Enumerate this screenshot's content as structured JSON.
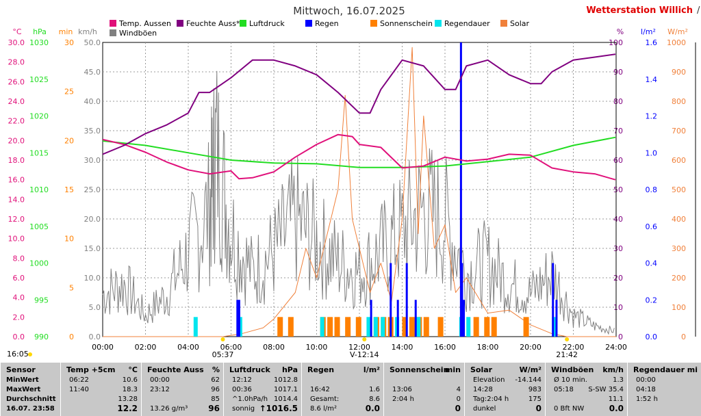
{
  "header": {
    "title": "Mittwoch, 16.07.2025",
    "station": "Wetterstation Willich"
  },
  "legend": [
    {
      "label": "Temp. Aussen",
      "color": "#e0107a"
    },
    {
      "label": "Feuchte Auss*",
      "color": "#800080"
    },
    {
      "label": "Luftdruck",
      "color": "#22dd22"
    },
    {
      "label": "Regen",
      "color": "#0000ff"
    },
    {
      "label": "Sonnenschein",
      "color": "#ff8000"
    },
    {
      "label": "Regendauer",
      "color": "#00e5ee"
    },
    {
      "label": "Solar",
      "color": "#f0803a"
    },
    {
      "label": "Windböen",
      "color": "#808080"
    }
  ],
  "axes": {
    "temp": {
      "unit": "°C",
      "color": "#e0107a",
      "ticks": [
        "30.0",
        "28.0",
        "26.0",
        "24.0",
        "22.0",
        "20.0",
        "18.0",
        "16.0",
        "14.0",
        "12.0",
        "10.0",
        "8.0",
        "6.0",
        "4.0",
        "2.0",
        "0.0"
      ]
    },
    "pressure": {
      "unit": "hPa",
      "color": "#22dd22",
      "ticks": [
        "1030",
        "1025",
        "1020",
        "1015",
        "1010",
        "1005",
        "1000",
        "995",
        "990"
      ]
    },
    "minutes": {
      "unit": "min",
      "color": "#ff8000",
      "ticks": [
        "30",
        "25",
        "20",
        "15",
        "10",
        "5",
        "0"
      ]
    },
    "wind": {
      "unit": "km/h",
      "color": "#808080",
      "ticks": [
        "50.0",
        "45.0",
        "40.0",
        "35.0",
        "30.0",
        "25.0",
        "20.0",
        "15.0",
        "10.0",
        "5.0",
        "0.0"
      ]
    },
    "humidity": {
      "unit": "%",
      "color": "#800080",
      "ticks": [
        "100",
        "90",
        "80",
        "70",
        "60",
        "50",
        "40",
        "30",
        "20",
        "10",
        "0"
      ]
    },
    "rain": {
      "unit": "l/m²",
      "color": "#0000ff",
      "ticks": [
        "1.6",
        "1.4",
        "1.2",
        "1.0",
        "0.8",
        "0.6",
        "0.4",
        "0.2",
        "0.0"
      ]
    },
    "solar": {
      "unit": "W/m²",
      "color": "#f0803a",
      "ticks": [
        "1000",
        "900",
        "800",
        "700",
        "600",
        "500",
        "400",
        "300",
        "200",
        "100",
        "0"
      ]
    },
    "time_ticks": [
      "00:00",
      "02:00",
      "04:00",
      "06:00",
      "08:00",
      "10:00",
      "12:00",
      "14:00",
      "16:00",
      "18:00",
      "20:00",
      "22:00",
      "24:00"
    ]
  },
  "sun_markers": {
    "left_label": "16:05",
    "sunrise": "05:37",
    "noon": "12:14",
    "sunset": "21:42"
  },
  "chart_data": {
    "type": "line",
    "title": "Mittwoch, 16.07.2025",
    "x_range": [
      "00:00",
      "24:00"
    ],
    "series": [
      {
        "name": "Temp. Aussen",
        "unit": "°C",
        "range": [
          0,
          30
        ],
        "x": [
          "00:00",
          "01:00",
          "02:00",
          "03:00",
          "04:00",
          "05:00",
          "06:00",
          "06:22",
          "07:00",
          "08:00",
          "09:00",
          "10:00",
          "11:00",
          "11:40",
          "12:00",
          "13:00",
          "14:00",
          "15:00",
          "16:00",
          "17:00",
          "18:00",
          "19:00",
          "20:00",
          "21:00",
          "22:00",
          "23:00",
          "23:58"
        ],
        "y": [
          20.1,
          19.6,
          18.8,
          17.8,
          17.0,
          16.6,
          16.9,
          16.1,
          16.2,
          16.8,
          18.3,
          19.6,
          20.6,
          20.4,
          19.6,
          19.3,
          17.2,
          17.4,
          18.3,
          17.9,
          18.1,
          18.6,
          18.5,
          17.2,
          16.8,
          16.6,
          16.0
        ]
      },
      {
        "name": "Feuchte Auss*",
        "unit": "%",
        "range": [
          0,
          100
        ],
        "x": [
          "00:00",
          "01:00",
          "02:00",
          "03:00",
          "04:00",
          "04:30",
          "05:00",
          "06:00",
          "07:00",
          "08:00",
          "09:00",
          "10:00",
          "11:00",
          "12:00",
          "12:30",
          "13:00",
          "14:00",
          "15:00",
          "16:00",
          "16:30",
          "17:00",
          "18:00",
          "19:00",
          "20:00",
          "20:30",
          "21:00",
          "22:00",
          "23:00",
          "23:58"
        ],
        "y": [
          62,
          65,
          69,
          72,
          76,
          83,
          83,
          88,
          94,
          94,
          92,
          89,
          83,
          76,
          76,
          84,
          94,
          92,
          84,
          84,
          92,
          94,
          89,
          86,
          86,
          90,
          94,
          95,
          96
        ]
      },
      {
        "name": "Luftdruck",
        "unit": "hPa",
        "range": [
          990,
          1030
        ],
        "x": [
          "00:00",
          "02:00",
          "04:00",
          "06:00",
          "08:00",
          "10:00",
          "12:00",
          "14:00",
          "16:00",
          "18:00",
          "20:00",
          "22:00",
          "23:58"
        ],
        "y": [
          1016.6,
          1016.0,
          1015.0,
          1014.0,
          1013.6,
          1013.5,
          1013.0,
          1013.0,
          1013.2,
          1013.8,
          1014.4,
          1016.0,
          1017.1
        ]
      },
      {
        "name": "Regen",
        "unit": "l/m²",
        "range": [
          0,
          1.6
        ],
        "x": [
          "06:15",
          "06:20",
          "12:30",
          "13:25",
          "13:45",
          "14:10",
          "14:35",
          "16:42",
          "16:45",
          "16:50",
          "21:00",
          "21:10"
        ],
        "y": [
          0.2,
          0.2,
          0.2,
          0.4,
          0.2,
          0.4,
          0.2,
          1.6,
          0.4,
          0.2,
          0.4,
          0.2
        ]
      },
      {
        "name": "Sonnenschein",
        "unit": "min",
        "range": [
          0,
          30
        ],
        "x": [
          "08:10",
          "08:40",
          "10:10",
          "10:30",
          "10:50",
          "11:20",
          "11:50",
          "12:40",
          "13:00",
          "13:20",
          "14:00",
          "14:20",
          "14:40",
          "15:00",
          "15:40",
          "17:20",
          "17:50",
          "18:10",
          "19:40"
        ],
        "y": [
          2,
          2,
          2,
          2,
          2,
          2,
          2,
          2,
          2,
          2,
          2,
          2,
          2,
          2,
          2,
          2,
          2,
          2,
          2
        ]
      },
      {
        "name": "Regendauer",
        "unit": "min",
        "range": [
          0,
          30
        ],
        "x": [
          "04:15",
          "06:20",
          "10:10",
          "12:20",
          "12:40",
          "13:00",
          "13:40",
          "14:40",
          "16:40",
          "17:00",
          "21:00"
        ],
        "y": [
          2,
          2,
          2,
          2,
          2,
          2,
          2,
          2,
          2,
          2,
          2
        ]
      },
      {
        "name": "Solar",
        "unit": "W/m²",
        "range": [
          0,
          1000
        ],
        "x": [
          "00:00",
          "05:37",
          "06:30",
          "07:30",
          "08:00",
          "09:00",
          "09:30",
          "10:00",
          "11:00",
          "11:20",
          "11:40",
          "12:00",
          "12:30",
          "13:00",
          "13:30",
          "14:00",
          "14:28",
          "14:45",
          "15:00",
          "15:30",
          "16:00",
          "16:30",
          "17:00",
          "18:00",
          "19:00",
          "20:00",
          "21:00",
          "21:42",
          "22:00",
          "24:00"
        ],
        "y": [
          0,
          0,
          10,
          30,
          60,
          150,
          300,
          200,
          500,
          820,
          400,
          300,
          150,
          250,
          120,
          400,
          983,
          350,
          750,
          300,
          380,
          150,
          200,
          80,
          90,
          40,
          10,
          0,
          0,
          0
        ]
      },
      {
        "name": "Windböen",
        "unit": "km/h",
        "range": [
          0,
          50
        ],
        "x": [
          "00:00",
          "01:00",
          "02:00",
          "03:00",
          "04:00",
          "05:00",
          "05:18",
          "06:00",
          "07:00",
          "08:00",
          "09:00",
          "10:00",
          "11:00",
          "12:00",
          "13:00",
          "14:00",
          "15:00",
          "16:00",
          "17:00",
          "18:00",
          "19:00",
          "20:00",
          "21:00",
          "22:00",
          "23:00",
          "23:58"
        ],
        "y": [
          8,
          10,
          4,
          8,
          16,
          24,
          35.4,
          20,
          12,
          16,
          22,
          18,
          14,
          12,
          16,
          20,
          24,
          22,
          12,
          14,
          10,
          8,
          12,
          4,
          2,
          1
        ]
      }
    ]
  },
  "table": {
    "columns": [
      {
        "header": "Sensor",
        "unit": "",
        "rows": [
          "MinWert",
          "MaxWert",
          "Durchschnitt",
          "16.07. 23:58"
        ]
      },
      {
        "header": "Temp +5cm",
        "unit": "°C",
        "rows": [
          [
            "06:22",
            "10.6"
          ],
          [
            "11:40",
            "18.3"
          ],
          [
            "",
            "13.28"
          ],
          [
            "",
            "12.2"
          ]
        ]
      },
      {
        "header": "Feuchte Auss",
        "unit": "%",
        "rows": [
          [
            "00:00",
            "62"
          ],
          [
            "23:12",
            "96"
          ],
          [
            "",
            "85"
          ],
          [
            "13.26 g/m³",
            "96"
          ]
        ]
      },
      {
        "header": "Luftdruck",
        "unit": "hPa",
        "rows": [
          [
            "12:12",
            "1012.8"
          ],
          [
            "00:36",
            "1017.1"
          ],
          [
            "^1.0hPa/h",
            "1014.4"
          ],
          [
            "sonnig",
            "↑1016.5"
          ]
        ]
      },
      {
        "header": "Regen",
        "unit": "l/m²",
        "rows": [
          [
            "",
            ""
          ],
          [
            "16:42",
            "1.6"
          ],
          [
            "Gesamt:",
            "8.6"
          ],
          [
            "8.6 l/m²",
            "0.0"
          ]
        ]
      },
      {
        "header": "Sonnenschein",
        "unit": "min",
        "rows": [
          [
            "",
            ""
          ],
          [
            "13:06",
            "4"
          ],
          [
            "2:04 h",
            "0"
          ],
          [
            "",
            "0"
          ]
        ]
      },
      {
        "header": "Solar",
        "unit": "W/m²",
        "rows": [
          [
            "Elevation",
            "-14.144"
          ],
          [
            "14:28",
            "983"
          ],
          [
            "Tag:2:04 h",
            "175"
          ],
          [
            "dunkel",
            "0"
          ]
        ]
      },
      {
        "header": "Windböen",
        "unit": "km/h",
        "rows": [
          [
            "Ø 10 min.",
            "1.3"
          ],
          [
            "05:18",
            "S-SW 35.4"
          ],
          [
            "",
            "11.1"
          ],
          [
            "0 Bft NW",
            "0.0"
          ]
        ]
      },
      {
        "header": "Regendauer",
        "unit": "mi",
        "rows": [
          [
            "00:00",
            ""
          ],
          [
            "04:18",
            ""
          ],
          [
            "1:52 h",
            ""
          ],
          [
            "",
            ""
          ]
        ]
      }
    ]
  }
}
